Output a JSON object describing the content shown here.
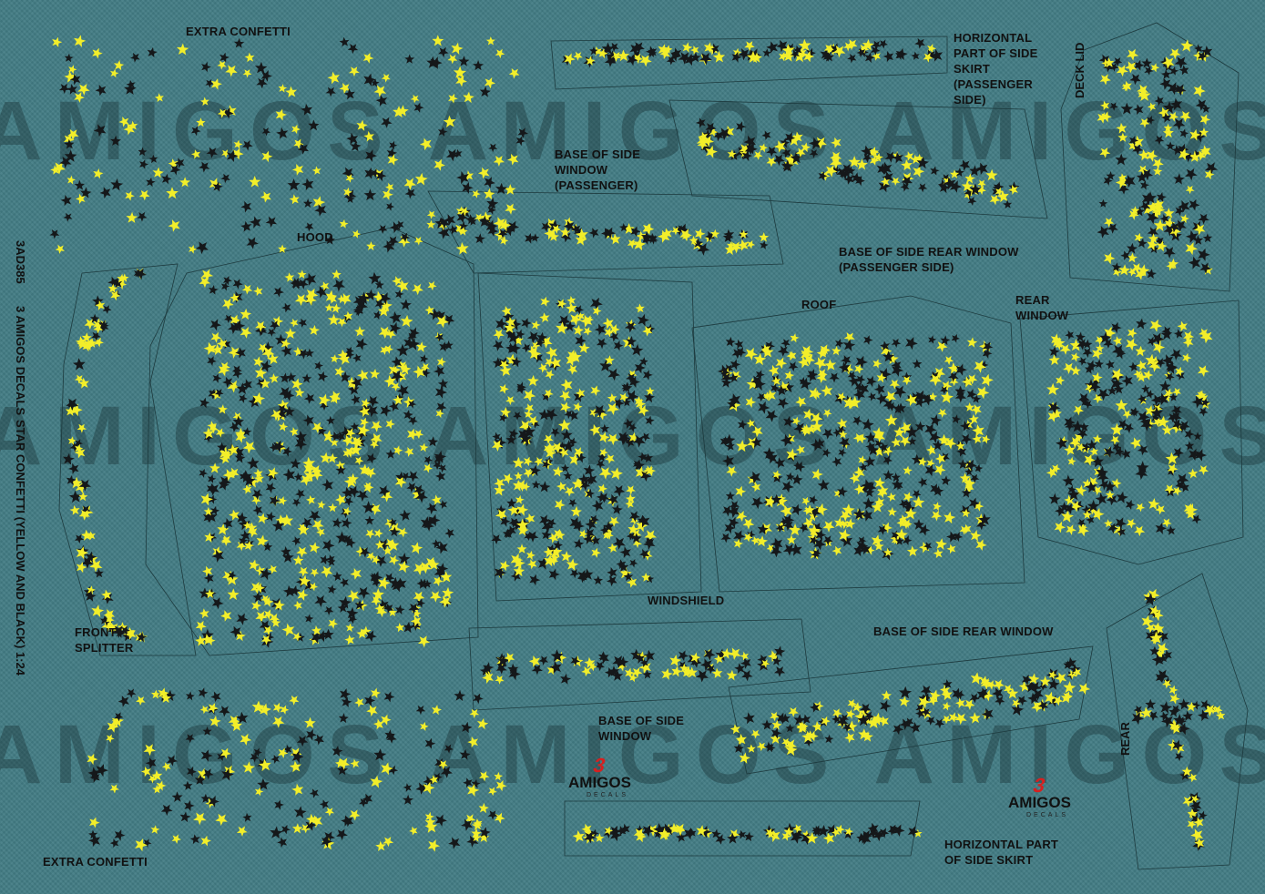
{
  "sheet": {
    "background": "#427c84",
    "star_yellow": "#f2ee2a",
    "star_black": "#15181a",
    "watermark_text": "AMIGOS AMIGOS AMIGOS",
    "watermark_sub": "DECALS"
  },
  "labels": {
    "extra_confetti_top": "EXTRA CONFETTI",
    "extra_confetti_bottom": "EXTRA CONFETTI",
    "hood": "HOOD",
    "front_splitter": "FRONT\nSPLITTER",
    "base_side_window_passenger": "BASE OF SIDE\nWINDOW\n(PASSENGER)",
    "horizontal_skirt_passenger": "HORIZONTAL\nPART OF SIDE\nSKIRT\n(PASSENGER\nSIDE)",
    "deck_lid": "DECK LID",
    "base_side_rear_window_passenger": "BASE OF SIDE REAR WINDOW\n(PASSENGER SIDE)",
    "roof": "ROOF",
    "rear_window": "REAR\nWINDOW",
    "windshield": "WINDSHIELD",
    "base_side_rear_window": "BASE OF SIDE REAR WINDOW",
    "base_side_window": "BASE OF SIDE\nWINDOW",
    "horizontal_skirt": "HORIZONTAL PART\nOF SIDE SKIRT",
    "rear": "REAR"
  },
  "sidebar": {
    "code": "3AD385",
    "brand": "3 AMIGOS DECALS",
    "title": "STAR CONFETTI (YELLOW AND BLACK) 1:24"
  },
  "logos": {
    "word": "AMIGOS",
    "sub": "DECALS",
    "mark": "3"
  }
}
